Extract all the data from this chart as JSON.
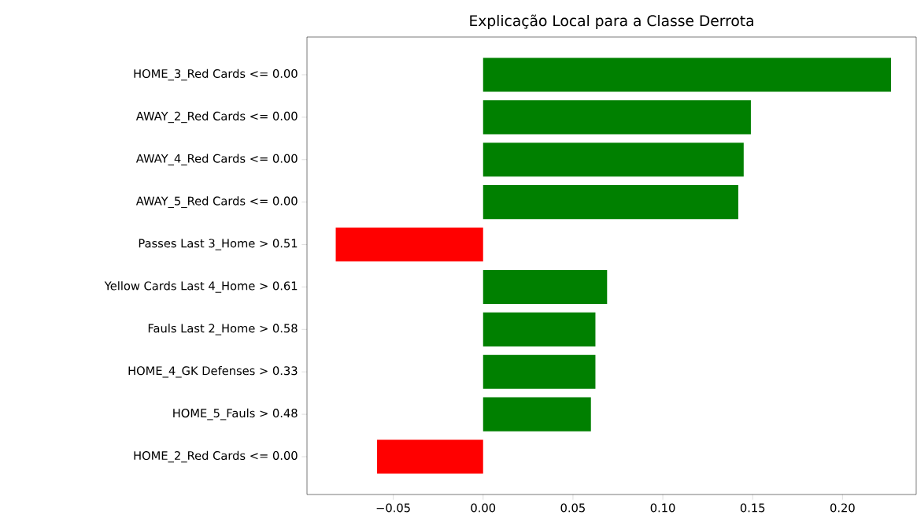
{
  "chart_data": {
    "type": "bar",
    "orientation": "horizontal",
    "title": "Explicação Local para a Classe Derrota",
    "categories": [
      "HOME_3_Red Cards <= 0.00",
      "AWAY_2_Red Cards <= 0.00",
      "AWAY_4_Red Cards <= 0.00",
      "AWAY_5_Red Cards <= 0.00",
      "Passes Last 3_Home > 0.51",
      "Yellow Cards Last 4_Home > 0.61",
      "Fauls Last 2_Home > 0.58",
      "HOME_4_GK Defenses > 0.33",
      "HOME_5_Fauls > 0.48",
      "HOME_2_Red Cards <= 0.00"
    ],
    "values": [
      0.227,
      0.149,
      0.145,
      0.142,
      -0.082,
      0.069,
      0.0625,
      0.0625,
      0.06,
      -0.059
    ],
    "colors": [
      "#008000",
      "#008000",
      "#008000",
      "#008000",
      "#ff0000",
      "#008000",
      "#008000",
      "#008000",
      "#008000",
      "#ff0000"
    ],
    "xlim": [
      -0.098,
      0.241
    ],
    "xticks": [
      {
        "value": -0.05,
        "label": "−0.05"
      },
      {
        "value": 0,
        "label": "0.00"
      },
      {
        "value": 0.05,
        "label": "0.05"
      },
      {
        "value": 0.1,
        "label": "0.10"
      },
      {
        "value": 0.15,
        "label": "0.15"
      },
      {
        "value": 0.2,
        "label": "0.20"
      }
    ],
    "grid": false
  }
}
